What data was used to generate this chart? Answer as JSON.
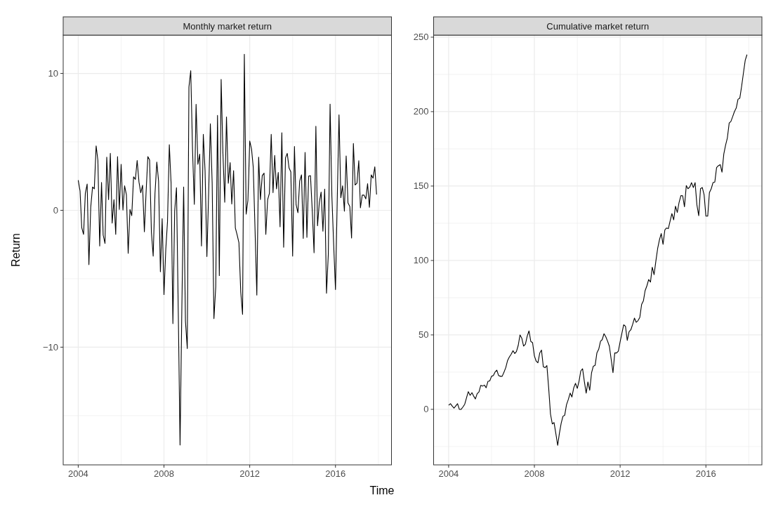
{
  "chart_data": [
    {
      "type": "line",
      "title": "Monthly market return",
      "xlabel": "Time",
      "ylabel": "Return",
      "grid": true,
      "xlim": [
        "2003-04-20",
        "2018-08-12"
      ],
      "xticks": [
        "2004",
        {
          "value": "2006",
          "label": null
        },
        "2008",
        {
          "value": "2010",
          "label": null
        },
        "2012",
        {
          "value": "2014",
          "label": null
        },
        "2016",
        {
          "value": "2018",
          "label": null
        }
      ],
      "ylim": [
        -18.6,
        12.8
      ],
      "yticks": [
        {
          "value": -15,
          "label": null
        },
        {
          "value": -10,
          "label": "−10"
        },
        {
          "value": -5,
          "label": null
        },
        0,
        {
          "value": 5,
          "label": null
        },
        10
      ],
      "x": [
        "2004-01",
        "2004-02",
        "2004-03",
        "2004-04",
        "2004-05",
        "2004-06",
        "2004-07",
        "2004-08",
        "2004-09",
        "2004-10",
        "2004-11",
        "2004-12",
        "2005-01",
        "2005-02",
        "2005-03",
        "2005-04",
        "2005-05",
        "2005-06",
        "2005-07",
        "2005-08",
        "2005-09",
        "2005-10",
        "2005-11",
        "2005-12",
        "2006-01",
        "2006-02",
        "2006-03",
        "2006-04",
        "2006-05",
        "2006-06",
        "2006-07",
        "2006-08",
        "2006-09",
        "2006-10",
        "2006-11",
        "2006-12",
        "2007-01",
        "2007-02",
        "2007-03",
        "2007-04",
        "2007-05",
        "2007-06",
        "2007-07",
        "2007-08",
        "2007-09",
        "2007-10",
        "2007-11",
        "2007-12",
        "2008-01",
        "2008-02",
        "2008-03",
        "2008-04",
        "2008-05",
        "2008-06",
        "2008-07",
        "2008-08",
        "2008-09",
        "2008-10",
        "2008-11",
        "2008-12",
        "2009-01",
        "2009-02",
        "2009-03",
        "2009-04",
        "2009-05",
        "2009-06",
        "2009-07",
        "2009-08",
        "2009-09",
        "2009-10",
        "2009-11",
        "2009-12",
        "2010-01",
        "2010-02",
        "2010-03",
        "2010-04",
        "2010-05",
        "2010-06",
        "2010-07",
        "2010-08",
        "2010-09",
        "2010-10",
        "2010-11",
        "2010-12",
        "2011-01",
        "2011-02",
        "2011-03",
        "2011-04",
        "2011-05",
        "2011-06",
        "2011-07",
        "2011-08",
        "2011-09",
        "2011-10",
        "2011-11",
        "2011-12",
        "2012-01",
        "2012-02",
        "2012-03",
        "2012-04",
        "2012-05",
        "2012-06",
        "2012-07",
        "2012-08",
        "2012-09",
        "2012-10",
        "2012-11",
        "2012-12",
        "2013-01",
        "2013-02",
        "2013-03",
        "2013-04",
        "2013-05",
        "2013-06",
        "2013-07",
        "2013-08",
        "2013-09",
        "2013-10",
        "2013-11",
        "2013-12",
        "2014-01",
        "2014-02",
        "2014-03",
        "2014-04",
        "2014-05",
        "2014-06",
        "2014-07",
        "2014-08",
        "2014-09",
        "2014-10",
        "2014-11",
        "2014-12",
        "2015-01",
        "2015-02",
        "2015-03",
        "2015-04",
        "2015-05",
        "2015-06",
        "2015-07",
        "2015-08",
        "2015-09",
        "2015-10",
        "2015-11",
        "2015-12",
        "2016-01",
        "2016-02",
        "2016-03",
        "2016-04",
        "2016-05",
        "2016-06",
        "2016-07",
        "2016-08",
        "2016-09",
        "2016-10",
        "2016-11",
        "2016-12",
        "2017-01",
        "2017-02",
        "2017-03",
        "2017-04",
        "2017-05",
        "2017-06",
        "2017-07",
        "2017-08",
        "2017-09",
        "2017-10",
        "2017-11",
        "2017-12"
      ],
      "series": [
        {
          "color": "#000000",
          "values": [
            2.2,
            1.42,
            -1.26,
            -1.76,
            1.24,
            1.92,
            -3.97,
            0.22,
            1.7,
            1.57,
            4.71,
            3.64,
            -2.61,
            2.03,
            -1.81,
            -2.42,
            3.88,
            0.78,
            4.16,
            -0.94,
            0.78,
            -1.76,
            3.92,
            0.06,
            3.36,
            0.02,
            1.79,
            1.13,
            -3.14,
            0.06,
            -0.39,
            2.44,
            2.26,
            3.64,
            2.07,
            1.28,
            1.83,
            -1.57,
            1.2,
            3.92,
            3.68,
            -1.63,
            -3.35,
            1.24,
            3.53,
            2.13,
            -4.49,
            -0.61,
            -6.16,
            -2.83,
            -0.83,
            4.79,
            1.98,
            -8.28,
            -0.06,
            1.65,
            -7.5,
            -17.15,
            -7.0,
            1.7,
            -8.1,
            -10.1,
            9.0,
            10.2,
            4.5,
            0.44,
            7.74,
            3.36,
            4.1,
            -2.6,
            5.55,
            2.9,
            -3.38,
            1.4,
            6.32,
            2.0,
            -7.91,
            -5.6,
            6.93,
            -4.77,
            9.56,
            4.2,
            0.59,
            6.82,
            1.98,
            3.49,
            0.46,
            2.9,
            -1.29,
            -1.8,
            -2.37,
            -5.97,
            -7.6,
            11.4,
            -0.28,
            0.72,
            5.06,
            4.47,
            3.14,
            -1.5,
            -6.19,
            3.88,
            0.78,
            2.53,
            2.72,
            -1.76,
            0.78,
            1.24,
            5.55,
            1.29,
            4.01,
            1.57,
            2.77,
            -1.2,
            5.67,
            -2.7,
            3.83,
            4.16,
            3.09,
            2.81,
            -3.35,
            4.66,
            0.41,
            -0.18,
            2.13,
            2.59,
            -2.05,
            4.23,
            -1.98,
            2.5,
            2.53,
            0.0,
            -3.1,
            6.14,
            -1.13,
            0.59,
            1.33,
            -1.53,
            1.55,
            -6.06,
            -3.2,
            7.76,
            1.0,
            -2.5,
            -5.79,
            1.0,
            6.97,
            0.92,
            1.79,
            -0.06,
            3.97,
            0.54,
            0.28,
            -2.03,
            4.88,
            1.85,
            1.98,
            3.62,
            0.18,
            1.11,
            1.11,
            0.83,
            1.94,
            0.22,
            2.59,
            2.35,
            3.18,
            1.15
          ]
        }
      ]
    },
    {
      "type": "line",
      "title": "Cumulative market return",
      "grid": true,
      "xlim": [
        "2003-04-20",
        "2018-08-12"
      ],
      "xticks": [
        "2004",
        {
          "value": "2006",
          "label": null
        },
        "2008",
        {
          "value": "2010",
          "label": null
        },
        "2012",
        {
          "value": "2014",
          "label": null
        },
        "2016",
        {
          "value": "2018",
          "label": null
        }
      ],
      "ylim": [
        -37.3,
        251.4
      ],
      "yticks": [
        {
          "value": -25,
          "label": null
        },
        0,
        {
          "value": 25,
          "label": null
        },
        50,
        {
          "value": 75,
          "label": null
        },
        100,
        {
          "value": 125,
          "label": null
        },
        150,
        {
          "value": 175,
          "label": null
        },
        200,
        {
          "value": 225,
          "label": null
        },
        250
      ],
      "x": [
        "2004-01",
        "2004-02",
        "2004-03",
        "2004-04",
        "2004-05",
        "2004-06",
        "2004-07",
        "2004-08",
        "2004-09",
        "2004-10",
        "2004-11",
        "2004-12",
        "2005-01",
        "2005-02",
        "2005-03",
        "2005-04",
        "2005-05",
        "2005-06",
        "2005-07",
        "2005-08",
        "2005-09",
        "2005-10",
        "2005-11",
        "2005-12",
        "2006-01",
        "2006-02",
        "2006-03",
        "2006-04",
        "2006-05",
        "2006-06",
        "2006-07",
        "2006-08",
        "2006-09",
        "2006-10",
        "2006-11",
        "2006-12",
        "2007-01",
        "2007-02",
        "2007-03",
        "2007-04",
        "2007-05",
        "2007-06",
        "2007-07",
        "2007-08",
        "2007-09",
        "2007-10",
        "2007-11",
        "2007-12",
        "2008-01",
        "2008-02",
        "2008-03",
        "2008-04",
        "2008-05",
        "2008-06",
        "2008-07",
        "2008-08",
        "2008-09",
        "2008-10",
        "2008-11",
        "2008-12",
        "2009-01",
        "2009-02",
        "2009-03",
        "2009-04",
        "2009-05",
        "2009-06",
        "2009-07",
        "2009-08",
        "2009-09",
        "2009-10",
        "2009-11",
        "2009-12",
        "2010-01",
        "2010-02",
        "2010-03",
        "2010-04",
        "2010-05",
        "2010-06",
        "2010-07",
        "2010-08",
        "2010-09",
        "2010-10",
        "2010-11",
        "2010-12",
        "2011-01",
        "2011-02",
        "2011-03",
        "2011-04",
        "2011-05",
        "2011-06",
        "2011-07",
        "2011-08",
        "2011-09",
        "2011-10",
        "2011-11",
        "2011-12",
        "2012-01",
        "2012-02",
        "2012-03",
        "2012-04",
        "2012-05",
        "2012-06",
        "2012-07",
        "2012-08",
        "2012-09",
        "2012-10",
        "2012-11",
        "2012-12",
        "2013-01",
        "2013-02",
        "2013-03",
        "2013-04",
        "2013-05",
        "2013-06",
        "2013-07",
        "2013-08",
        "2013-09",
        "2013-10",
        "2013-11",
        "2013-12",
        "2014-01",
        "2014-02",
        "2014-03",
        "2014-04",
        "2014-05",
        "2014-06",
        "2014-07",
        "2014-08",
        "2014-09",
        "2014-10",
        "2014-11",
        "2014-12",
        "2015-01",
        "2015-02",
        "2015-03",
        "2015-04",
        "2015-05",
        "2015-06",
        "2015-07",
        "2015-08",
        "2015-09",
        "2015-10",
        "2015-11",
        "2015-12",
        "2016-01",
        "2016-02",
        "2016-03",
        "2016-04",
        "2016-05",
        "2016-06",
        "2016-07",
        "2016-08",
        "2016-09",
        "2016-10",
        "2016-11",
        "2016-12",
        "2017-01",
        "2017-02",
        "2017-03",
        "2017-04",
        "2017-05",
        "2017-06",
        "2017-07",
        "2017-08",
        "2017-09",
        "2017-10",
        "2017-11",
        "2017-12"
      ],
      "series": [
        {
          "color": "#000000",
          "values": [
            2.7,
            3.8,
            2.3,
            0.8,
            2.3,
            3.8,
            0,
            0,
            1.6,
            3.4,
            7.8,
            11.9,
            9.4,
            11.2,
            9,
            7,
            10.5,
            11.7,
            16.1,
            15.6,
            16.3,
            14.5,
            18.8,
            19.1,
            22.2,
            22.7,
            25,
            26.3,
            22.7,
            22.2,
            22.2,
            25,
            28.1,
            32.8,
            35.2,
            37,
            39.4,
            37.5,
            38.8,
            43,
            50,
            47.7,
            42.5,
            43.8,
            49.2,
            52.7,
            45.6,
            44.8,
            35.9,
            32.3,
            31.3,
            37.8,
            39.8,
            28.6,
            28,
            29.4,
            14,
            -3.1,
            -9.8,
            -8.9,
            -16.4,
            -24.2,
            -16.4,
            -9.4,
            -4.7,
            -3.9,
            3.1,
            6.6,
            10.9,
            8.3,
            14.4,
            17.5,
            14.1,
            19.1,
            25.8,
            27.3,
            18.8,
            10.9,
            18.4,
            12.8,
            24.6,
            29,
            29.6,
            37.9,
            40.4,
            45.8,
            46.8,
            50.8,
            48.8,
            45.8,
            42.4,
            33.7,
            24.6,
            37.9,
            37.9,
            39.1,
            45.4,
            51.3,
            56.8,
            55.8,
            46.3,
            52.1,
            53.4,
            57.1,
            61.3,
            58.5,
            59.6,
            61.8,
            70.5,
            73,
            79.7,
            83,
            87.2,
            85.5,
            95.5,
            90.5,
            99.7,
            108,
            113.9,
            118.1,
            110.9,
            120.6,
            121.8,
            121.4,
            126.4,
            131.5,
            127.3,
            136.5,
            132.3,
            139,
            143.6,
            143.5,
            136.1,
            150.3,
            148.2,
            149.3,
            152.3,
            149,
            152.3,
            137.3,
            130.1,
            148.2,
            149,
            144.3,
            129.8,
            129.8,
            145.6,
            148.2,
            152.3,
            152.7,
            162.4,
            163.7,
            164.4,
            159.3,
            171.5,
            177.4,
            182.4,
            192.4,
            193.3,
            196.6,
            200,
            202.4,
            208.3,
            209.1,
            217.1,
            225.8,
            234.5,
            238.3
          ]
        }
      ]
    }
  ]
}
